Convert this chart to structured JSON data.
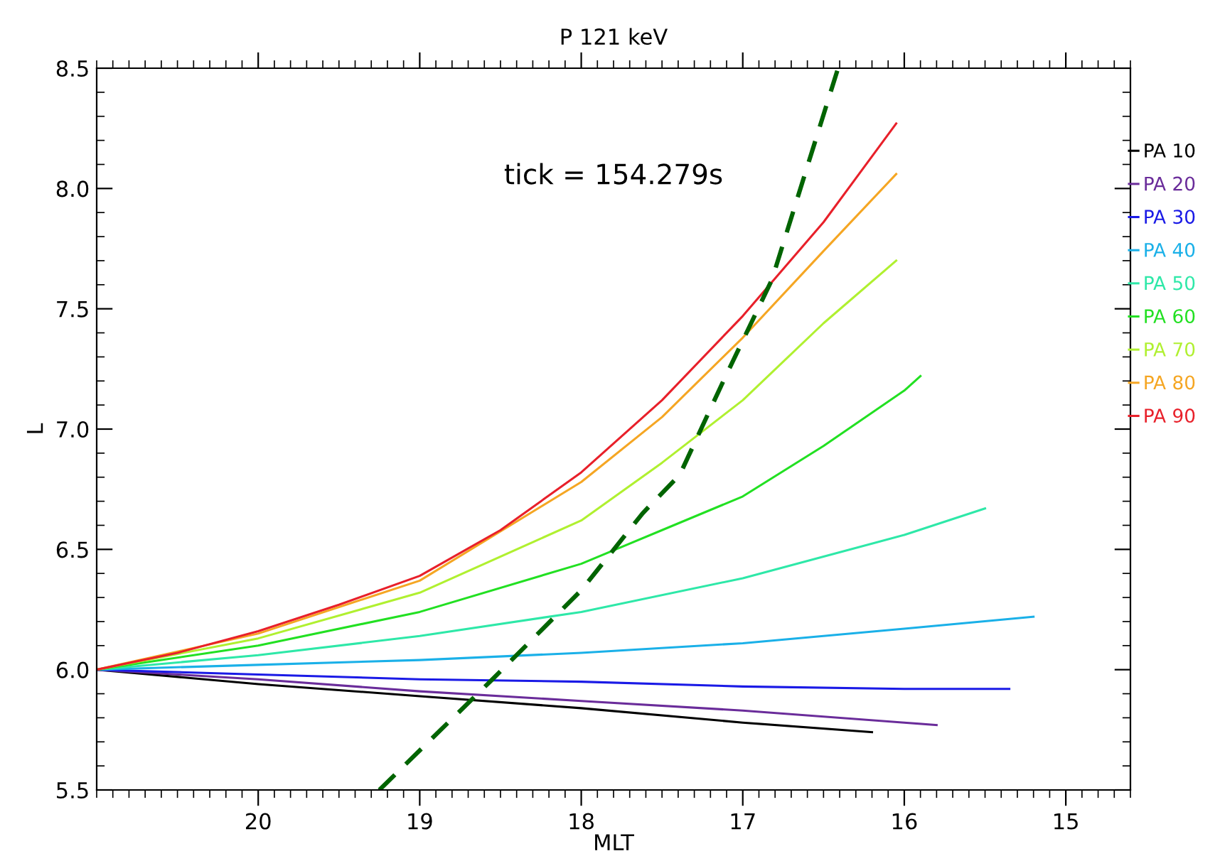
{
  "chart_data": {
    "type": "line",
    "title": "P 121 keV",
    "xlabel": "MLT",
    "ylabel": "L",
    "annotations": [
      "tick = 154.279s"
    ],
    "xlim": [
      21,
      14.6
    ],
    "ylim": [
      5.5,
      8.5
    ],
    "xticks": [
      20,
      19,
      18,
      17,
      16,
      15
    ],
    "yticks": [
      5.5,
      {
        "value": 6,
        "label": "6.0"
      },
      6.5,
      {
        "value": 7,
        "label": "7.0"
      },
      7.5,
      {
        "value": 8,
        "label": "8.0"
      },
      8.5
    ],
    "grid": false,
    "legend": "right",
    "marker": "none",
    "line_style": "solid",
    "series": [
      {
        "name": "PA 10",
        "color": "#000000",
        "x": [
          21,
          20,
          19,
          18,
          17,
          16.2
        ],
        "values": [
          6.0,
          5.94,
          5.89,
          5.84,
          5.78,
          5.74
        ]
      },
      {
        "name": "PA 20",
        "color": "#6a2c9a",
        "x": [
          21,
          20,
          19,
          18,
          17,
          16,
          15.8
        ],
        "values": [
          6.0,
          5.96,
          5.91,
          5.87,
          5.83,
          5.78,
          5.77
        ]
      },
      {
        "name": "PA 30",
        "color": "#1a1ae6",
        "x": [
          21,
          20,
          19,
          18,
          17,
          16,
          15.35
        ],
        "values": [
          6.0,
          5.98,
          5.96,
          5.95,
          5.93,
          5.92,
          5.92
        ]
      },
      {
        "name": "PA 40",
        "color": "#1ab0e8",
        "x": [
          21,
          20,
          19,
          18,
          17,
          16,
          15.2
        ],
        "values": [
          6.0,
          6.02,
          6.04,
          6.07,
          6.11,
          6.17,
          6.22
        ]
      },
      {
        "name": "PA 50",
        "color": "#2ee8a8",
        "x": [
          21,
          20,
          19,
          18,
          17,
          16.5,
          16,
          15.5
        ],
        "values": [
          6.0,
          6.06,
          6.14,
          6.24,
          6.38,
          6.47,
          6.56,
          6.67
        ]
      },
      {
        "name": "PA 60",
        "color": "#22e022",
        "x": [
          21,
          20,
          19,
          18,
          17.5,
          17,
          16.5,
          16,
          15.9
        ],
        "values": [
          6.0,
          6.1,
          6.24,
          6.44,
          6.58,
          6.72,
          6.93,
          7.16,
          7.22
        ]
      },
      {
        "name": "PA 70",
        "color": "#b0f030",
        "x": [
          21,
          20,
          19,
          18,
          17.5,
          17,
          16.5,
          16.05
        ],
        "values": [
          6.0,
          6.13,
          6.32,
          6.62,
          6.86,
          7.12,
          7.44,
          7.7
        ]
      },
      {
        "name": "PA 80",
        "color": "#f5a623",
        "x": [
          21,
          20,
          19,
          18,
          17.5,
          17,
          16.5,
          16.05
        ],
        "values": [
          6.0,
          6.15,
          6.37,
          6.78,
          7.05,
          7.38,
          7.74,
          8.06
        ]
      },
      {
        "name": "PA 90",
        "color": "#e8202a",
        "x": [
          21,
          20.5,
          20,
          19.5,
          19,
          18.5,
          18,
          17.5,
          17,
          16.5,
          16.05
        ],
        "values": [
          6.0,
          6.07,
          6.16,
          6.27,
          6.39,
          6.58,
          6.82,
          7.12,
          7.47,
          7.86,
          8.27
        ]
      },
      {
        "color": "#006400",
        "line_style": "dashed",
        "x": [
          19.25,
          18.55,
          18.0,
          17.62,
          17.39,
          17.12,
          16.82,
          16.41
        ],
        "values": [
          5.5,
          5.96,
          6.33,
          6.65,
          6.81,
          7.2,
          7.62,
          8.5
        ]
      }
    ]
  }
}
